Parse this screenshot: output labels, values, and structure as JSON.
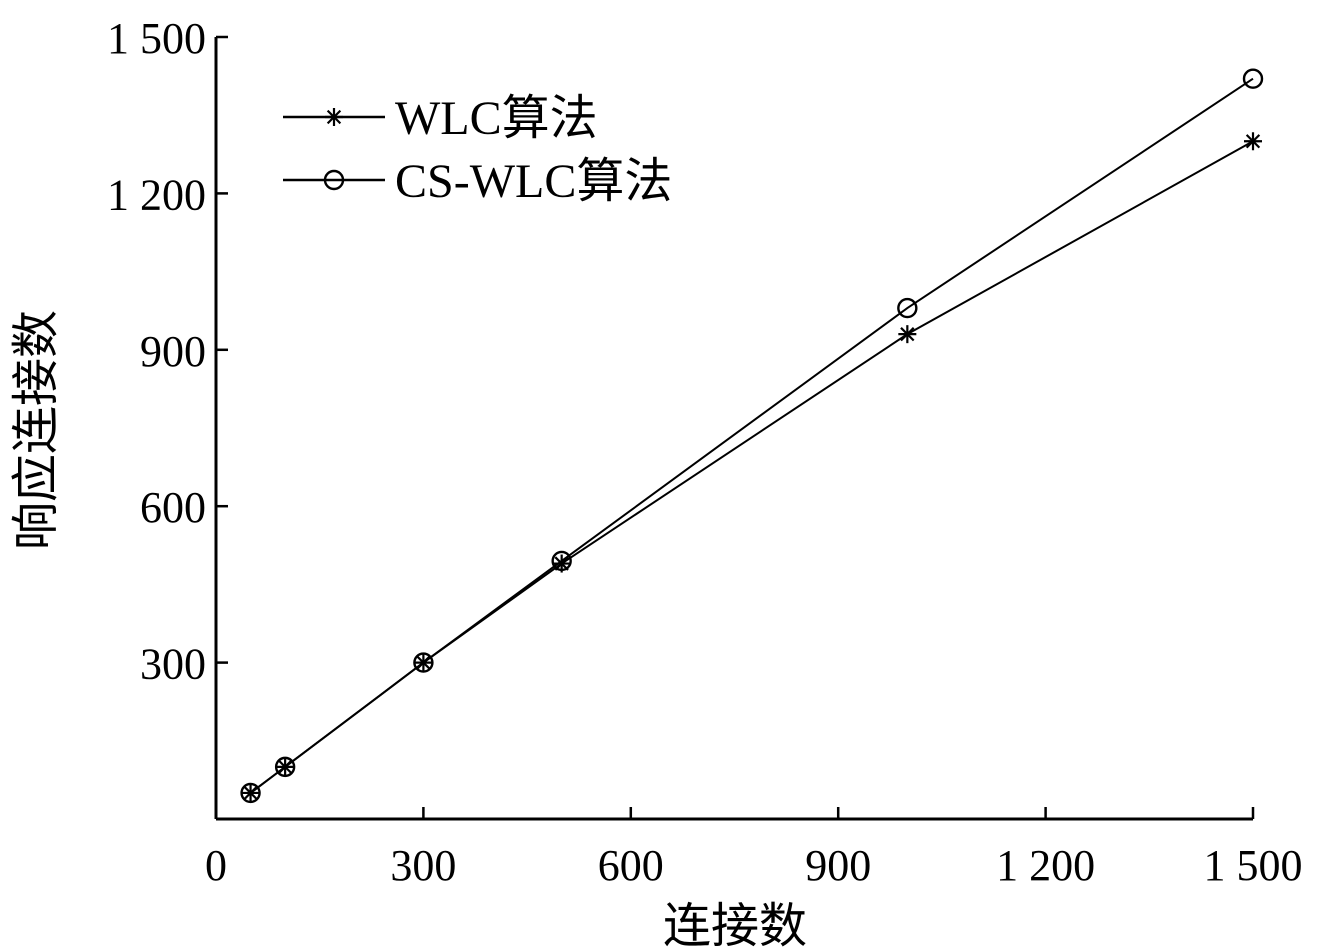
{
  "chart_data": {
    "type": "line",
    "xlabel": "连接数",
    "ylabel": "响应连接数",
    "xlim": [
      0,
      1500
    ],
    "ylim": [
      0,
      1500
    ],
    "x_ticks": [
      {
        "value": 0,
        "label": "0"
      },
      {
        "value": 300,
        "label": "300"
      },
      {
        "value": 600,
        "label": "600"
      },
      {
        "value": 900,
        "label": "900"
      },
      {
        "value": 1200,
        "label": "1 200"
      },
      {
        "value": 1500,
        "label": "1 500"
      }
    ],
    "y_ticks": [
      {
        "value": 300,
        "label": "300"
      },
      {
        "value": 600,
        "label": "600"
      },
      {
        "value": 900,
        "label": "900"
      },
      {
        "value": 1200,
        "label": "1 200"
      },
      {
        "value": 1500,
        "label": "1 500"
      }
    ],
    "grid": false,
    "legend_position": "top-left",
    "series": [
      {
        "name": "WLC算法",
        "marker": "asterisk",
        "color": "#000000",
        "points": [
          [
            50,
            50
          ],
          [
            100,
            100
          ],
          [
            300,
            300
          ],
          [
            500,
            490
          ],
          [
            1000,
            930
          ],
          [
            1500,
            1300
          ]
        ]
      },
      {
        "name": "CS-WLC算法",
        "marker": "circle",
        "color": "#000000",
        "points": [
          [
            50,
            50
          ],
          [
            100,
            100
          ],
          [
            300,
            300
          ],
          [
            500,
            495
          ],
          [
            1000,
            980
          ],
          [
            1500,
            1420
          ]
        ]
      }
    ]
  }
}
